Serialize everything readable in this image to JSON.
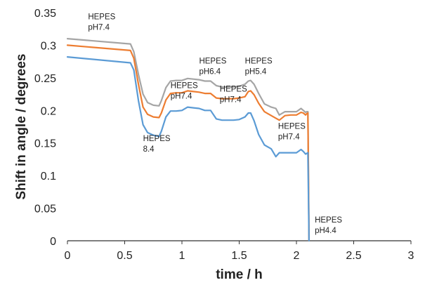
{
  "chart_data": {
    "type": "line",
    "title": "",
    "xlabel": "time / h",
    "ylabel": "Shift in angle / degrees",
    "xlim": [
      0,
      3
    ],
    "ylim": [
      0,
      0.35
    ],
    "x_ticks": [
      "0",
      "0.5",
      "1",
      "1.5",
      "2",
      "2.5",
      "3"
    ],
    "y_ticks": [
      "0",
      "0.05",
      "0.1",
      "0.15",
      "0.2",
      "0.25",
      "0.3",
      "0.35"
    ],
    "grid": false,
    "legend": "none",
    "series": [
      {
        "color": "#a5a5a5",
        "x": [
          0,
          0.55,
          0.58,
          0.62,
          0.66,
          0.7,
          0.75,
          0.8,
          0.82,
          0.86,
          0.9,
          0.95,
          1.0,
          1.05,
          1.1,
          1.15,
          1.2,
          1.25,
          1.3,
          1.35,
          1.4,
          1.45,
          1.5,
          1.55,
          1.58,
          1.6,
          1.63,
          1.67,
          1.72,
          1.78,
          1.82,
          1.85,
          1.9,
          1.95,
          2.0,
          2.04,
          2.06,
          2.08,
          2.09,
          2.1,
          2.105,
          2.11
        ],
        "y": [
          0.31,
          0.302,
          0.29,
          0.255,
          0.225,
          0.212,
          0.208,
          0.207,
          0.215,
          0.235,
          0.245,
          0.246,
          0.246,
          0.249,
          0.248,
          0.247,
          0.245,
          0.245,
          0.238,
          0.236,
          0.236,
          0.236,
          0.237,
          0.24,
          0.245,
          0.246,
          0.24,
          0.226,
          0.21,
          0.205,
          0.203,
          0.193,
          0.198,
          0.198,
          0.198,
          0.203,
          0.2,
          0.197,
          0.198,
          0.198,
          0.1,
          0
        ]
      },
      {
        "color": "#ed7d31",
        "x": [
          0,
          0.55,
          0.58,
          0.62,
          0.66,
          0.7,
          0.75,
          0.8,
          0.82,
          0.86,
          0.9,
          0.95,
          1.0,
          1.05,
          1.1,
          1.15,
          1.2,
          1.25,
          1.3,
          1.35,
          1.4,
          1.45,
          1.5,
          1.55,
          1.58,
          1.6,
          1.63,
          1.67,
          1.72,
          1.78,
          1.82,
          1.85,
          1.9,
          1.95,
          2.0,
          2.04,
          2.06,
          2.08,
          2.09,
          2.1,
          2.105,
          2.11
        ],
        "y": [
          0.3,
          0.292,
          0.28,
          0.24,
          0.205,
          0.194,
          0.19,
          0.189,
          0.196,
          0.216,
          0.226,
          0.227,
          0.227,
          0.23,
          0.229,
          0.228,
          0.226,
          0.226,
          0.219,
          0.218,
          0.218,
          0.218,
          0.219,
          0.221,
          0.229,
          0.23,
          0.224,
          0.211,
          0.198,
          0.192,
          0.188,
          0.185,
          0.192,
          0.193,
          0.193,
          0.197,
          0.196,
          0.193,
          0.195,
          0.196,
          0.1,
          0
        ]
      },
      {
        "color": "#5b9bd5",
        "x": [
          0,
          0.55,
          0.58,
          0.62,
          0.66,
          0.7,
          0.75,
          0.8,
          0.82,
          0.86,
          0.9,
          0.95,
          1.0,
          1.05,
          1.1,
          1.15,
          1.2,
          1.25,
          1.3,
          1.35,
          1.4,
          1.45,
          1.5,
          1.55,
          1.58,
          1.6,
          1.63,
          1.67,
          1.72,
          1.78,
          1.82,
          1.85,
          1.9,
          1.95,
          2.0,
          2.04,
          2.06,
          2.08,
          2.09,
          2.1,
          2.105,
          2.11
        ],
        "y": [
          0.282,
          0.273,
          0.262,
          0.215,
          0.178,
          0.166,
          0.162,
          0.16,
          0.168,
          0.19,
          0.199,
          0.199,
          0.2,
          0.205,
          0.204,
          0.203,
          0.2,
          0.2,
          0.187,
          0.185,
          0.185,
          0.185,
          0.186,
          0.19,
          0.196,
          0.196,
          0.184,
          0.163,
          0.147,
          0.141,
          0.129,
          0.135,
          0.135,
          0.135,
          0.135,
          0.14,
          0.137,
          0.133,
          0.134,
          0.135,
          0.07,
          0
        ]
      }
    ],
    "annotations": [
      {
        "lines": [
          "HEPES",
          "pH7.4"
        ],
        "x": 0.18,
        "y": 0.34
      },
      {
        "lines": [
          "HEPES",
          "8.4"
        ],
        "x": 0.66,
        "y": 0.153
      },
      {
        "lines": [
          "HEPES",
          "pH7.4"
        ],
        "x": 0.9,
        "y": 0.234
      },
      {
        "lines": [
          "HEPES",
          "pH6.4"
        ],
        "x": 1.15,
        "y": 0.272
      },
      {
        "lines": [
          "HEPES",
          "pH7.4"
        ],
        "x": 1.33,
        "y": 0.229
      },
      {
        "lines": [
          "HEPES",
          "pH5.4"
        ],
        "x": 1.55,
        "y": 0.272
      },
      {
        "lines": [
          "HEPES",
          "pH7.4"
        ],
        "x": 1.84,
        "y": 0.172
      },
      {
        "lines": [
          "HEPES",
          "pH4.4"
        ],
        "x": 2.16,
        "y": 0.028
      }
    ]
  }
}
